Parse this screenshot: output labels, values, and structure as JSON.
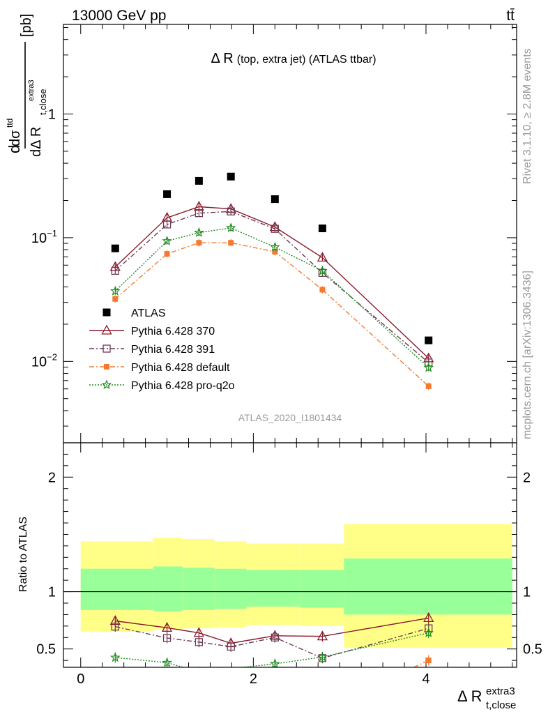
{
  "header": {
    "left": "13000 GeV pp",
    "right": "tt̄"
  },
  "side_labels": {
    "rivet": "Rivet 3.1.10, ≥ 2.8M events",
    "mcplots": "mcplots.cern.ch [arXiv:1306.3436]"
  },
  "chart_data": [
    {
      "type": "scatter",
      "panel": "main",
      "title": "Δ R (top, extra jet) (ATLAS ttbar)",
      "title_main": "Δ R",
      "title_sub": "(top, extra jet) (ATLAS ttbar)",
      "watermark": "ATLAS_2020_I1801434",
      "ylabel": "dσ^ttd / dΔ R_t,close^extra3 [pb]",
      "ylabel_parts": {
        "num_d": "d",
        "sigma": "dσ",
        "sigma_sup": "ttd",
        "den": "dΔ R",
        "den_sub": "t,close",
        "den_sup": "extra3",
        "unit": "[pb]"
      },
      "yscale": "log",
      "xlim": [
        -0.2,
        5.05
      ],
      "ylim": [
        0.0022,
        5.3
      ],
      "x_ticks": [
        0,
        2,
        4
      ],
      "y_ticks": [
        {
          "value": 1,
          "label": "1"
        },
        {
          "value": 0.1,
          "label": "10",
          "exp": "−1"
        },
        {
          "value": 0.01,
          "label": "10",
          "exp": "−2"
        }
      ],
      "legend_position": "lower-left",
      "x": [
        0.4,
        1.0,
        1.37,
        1.74,
        2.25,
        2.8,
        4.03
      ],
      "series": [
        {
          "name": "ATLAS",
          "color": "#000000",
          "marker": "square-filled",
          "line": "none",
          "values": [
            0.082,
            0.225,
            0.288,
            0.312,
            0.205,
            0.119,
            0.0148
          ]
        },
        {
          "name": "Pythia 6.428 370",
          "color": "#8b1a2b",
          "marker": "triangle-open",
          "line": "solid",
          "values": [
            0.058,
            0.145,
            0.178,
            0.171,
            0.122,
            0.069,
            0.0106
          ]
        },
        {
          "name": "Pythia 6.428 391",
          "color": "#6b3a55",
          "marker": "square-open",
          "line": "dashdot",
          "values": [
            0.054,
            0.128,
            0.158,
            0.163,
            0.118,
            0.052,
            0.0098
          ]
        },
        {
          "name": "Pythia 6.428 default",
          "color": "#f47a30",
          "marker": "square-filled-small",
          "line": "dashdot",
          "values": [
            0.032,
            0.074,
            0.091,
            0.091,
            0.077,
            0.038,
            0.0063
          ]
        },
        {
          "name": "Pythia 6.428 pro-q2o",
          "color": "#1f8a1f",
          "marker": "star",
          "line": "dotted",
          "values": [
            0.037,
            0.094,
            0.11,
            0.12,
            0.084,
            0.054,
            0.0089
          ]
        }
      ]
    },
    {
      "type": "line",
      "panel": "ratio",
      "ylabel": "Ratio to ATLAS",
      "xlabel": "Δ R_t,close^extra3",
      "xlabel_parts": {
        "main": "Δ R",
        "sup": "extra3",
        "sub": "t,close"
      },
      "xlim": [
        -0.2,
        5.05
      ],
      "ylim": [
        0.34,
        2.3
      ],
      "x_ticks": [
        {
          "value": 0,
          "label": "0"
        },
        {
          "value": 2,
          "label": "2"
        },
        {
          "value": 4,
          "label": "4"
        }
      ],
      "y_ticks": [
        {
          "value": 0.5,
          "label": "0.5"
        },
        {
          "value": 1,
          "label": "1"
        },
        {
          "value": 2,
          "label": "2"
        }
      ],
      "uncertainty_bins": [
        {
          "x0": 0.0,
          "x1": 0.84,
          "yellow": [
            0.65,
            1.44
          ],
          "green": [
            0.84,
            1.2
          ]
        },
        {
          "x0": 0.84,
          "x1": 1.18,
          "yellow": [
            0.67,
            1.47
          ],
          "green": [
            0.83,
            1.22
          ]
        },
        {
          "x0": 1.18,
          "x1": 1.55,
          "yellow": [
            0.68,
            1.46
          ],
          "green": [
            0.84,
            1.21
          ]
        },
        {
          "x0": 1.55,
          "x1": 1.92,
          "yellow": [
            0.69,
            1.44
          ],
          "green": [
            0.85,
            1.2
          ]
        },
        {
          "x0": 1.92,
          "x1": 2.54,
          "yellow": [
            0.71,
            1.42
          ],
          "green": [
            0.87,
            1.19
          ]
        },
        {
          "x0": 2.54,
          "x1": 3.05,
          "yellow": [
            0.7,
            1.42
          ],
          "green": [
            0.86,
            1.19
          ]
        },
        {
          "x0": 3.05,
          "x1": 5.0,
          "yellow": [
            0.51,
            1.59
          ],
          "green": [
            0.8,
            1.29
          ]
        }
      ],
      "series": [
        {
          "name": "Pythia 6.428 370",
          "color": "#8b1a2b",
          "marker": "triangle-open",
          "line": "solid",
          "x": [
            0.4,
            1.0,
            1.37,
            1.74,
            2.25,
            2.8,
            4.03
          ],
          "values": [
            0.745,
            0.685,
            0.64,
            0.55,
            0.615,
            0.61,
            0.77
          ]
        },
        {
          "name": "Pythia 6.428 391",
          "color": "#6b3a55",
          "marker": "square-open",
          "line": "dashdot",
          "x": [
            0.4,
            1.0,
            1.37,
            1.74,
            2.25,
            2.8,
            4.03
          ],
          "values": [
            0.695,
            0.595,
            0.56,
            0.52,
            0.6,
            0.42,
            0.68
          ]
        },
        {
          "name": "Pythia 6.428 default",
          "color": "#f47a30",
          "marker": "square-filled-small",
          "line": "dashdot",
          "x": [
            3.75,
            4.03
          ],
          "values": [
            0.3,
            0.4
          ]
        },
        {
          "name": "Pythia 6.428 pro-q2o",
          "color": "#1f8a1f",
          "marker": "star",
          "line": "dotted",
          "x": [
            0.4,
            1.0,
            1.37,
            2.25,
            2.8,
            4.03
          ],
          "values": [
            0.425,
            0.38,
            0.3,
            0.37,
            0.43,
            0.64
          ]
        }
      ]
    }
  ]
}
